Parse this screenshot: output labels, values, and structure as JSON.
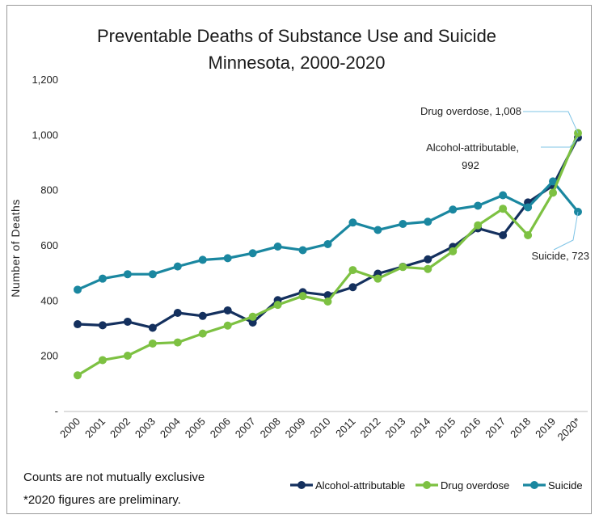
{
  "chart_data": {
    "type": "line",
    "title": "Preventable Deaths of Substance Use and Suicide",
    "subtitle": "Minnesota, 2000-2020",
    "ylabel": "Number of Deaths",
    "ylim": [
      0,
      1200
    ],
    "yticks": [
      {
        "value": 0,
        "label": "-"
      },
      {
        "value": 200,
        "label": "200"
      },
      {
        "value": 400,
        "label": "400"
      },
      {
        "value": 600,
        "label": "600"
      },
      {
        "value": 800,
        "label": "800"
      },
      {
        "value": 1000,
        "label": "1,000"
      },
      {
        "value": 1200,
        "label": "1,200"
      }
    ],
    "grid": false,
    "legend_position": "bottom-right",
    "categories": [
      "2000",
      "2001",
      "2002",
      "2003",
      "2004",
      "2005",
      "2006",
      "2007",
      "2008",
      "2009",
      "2010",
      "2011",
      "2012",
      "2013",
      "2014",
      "2015",
      "2016",
      "2017",
      "2018",
      "2019",
      "2020*"
    ],
    "series": [
      {
        "name": "Alcohol-attributable",
        "color": "#14305e",
        "values": [
          316,
          312,
          325,
          303,
          357,
          346,
          366,
          322,
          403,
          432,
          421,
          450,
          499,
          524,
          551,
          596,
          663,
          638,
          757,
          818,
          992
        ]
      },
      {
        "name": "Drug overdose",
        "color": "#7dc142",
        "values": [
          131,
          186,
          202,
          246,
          250,
          282,
          311,
          343,
          386,
          418,
          398,
          512,
          481,
          523,
          516,
          580,
          674,
          734,
          638,
          792,
          1008
        ]
      },
      {
        "name": "Suicide",
        "color": "#1a87a0",
        "values": [
          441,
          481,
          497,
          497,
          525,
          549,
          555,
          573,
          597,
          584,
          606,
          684,
          657,
          679,
          687,
          731,
          745,
          783,
          739,
          833,
          723
        ]
      }
    ],
    "annotations": [
      {
        "series": "Drug overdose",
        "index": 20,
        "lines": [
          "Drug overdose,  1,008"
        ]
      },
      {
        "series": "Alcohol-attributable",
        "index": 20,
        "lines": [
          "Alcohol-attributable,",
          "992"
        ]
      },
      {
        "series": "Suicide",
        "index": 20,
        "lines": [
          "Suicide,  723"
        ]
      }
    ],
    "footnotes": [
      "Counts are not mutually exclusive",
      "*2020 figures are preliminary."
    ]
  }
}
